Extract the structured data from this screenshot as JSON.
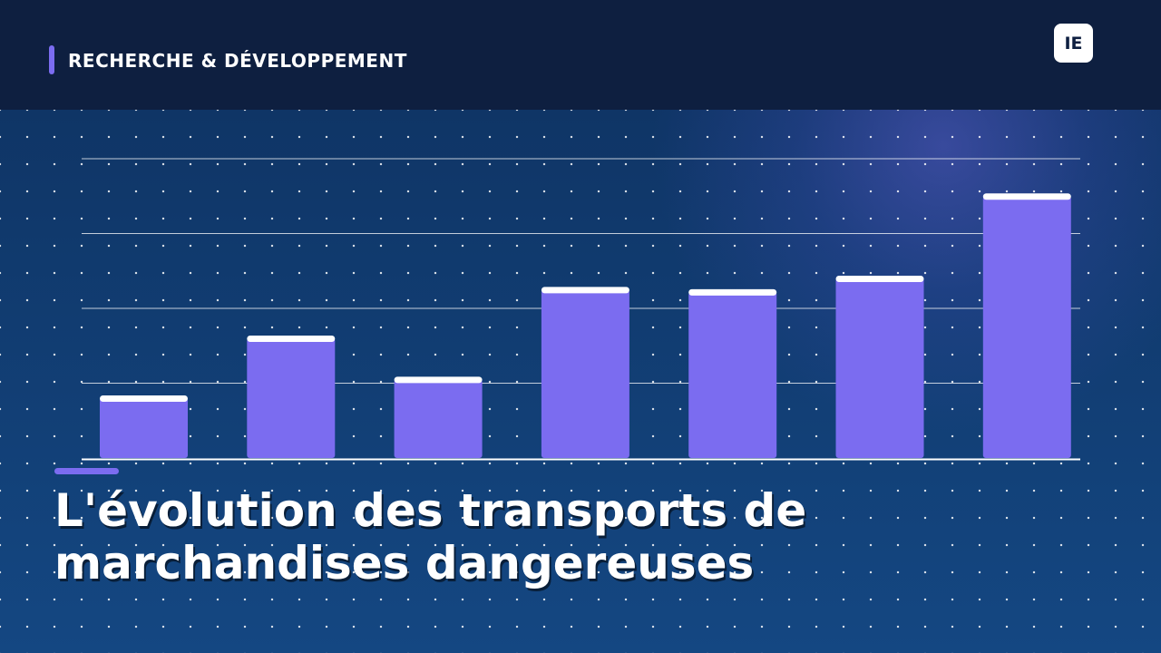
{
  "header": {
    "label": "RECHERCHE & DÉVELOPPEMENT",
    "logo_text": "IE"
  },
  "title": "L'évolution des transports de marchandises dangereuses",
  "colors": {
    "header_bg": "#0e1f40",
    "accent": "#7b6cf0",
    "bar": "#7b6cf0",
    "bar_cap": "#ffffff",
    "background": "#10305f"
  },
  "chart_data": {
    "type": "bar",
    "categories": [
      "",
      "",
      "",
      "",
      "",
      "",
      ""
    ],
    "values": [
      80,
      160,
      105,
      225,
      222,
      240,
      350
    ],
    "ylim": [
      0,
      400
    ],
    "grid": true,
    "title": "",
    "xlabel": "",
    "ylabel": ""
  }
}
